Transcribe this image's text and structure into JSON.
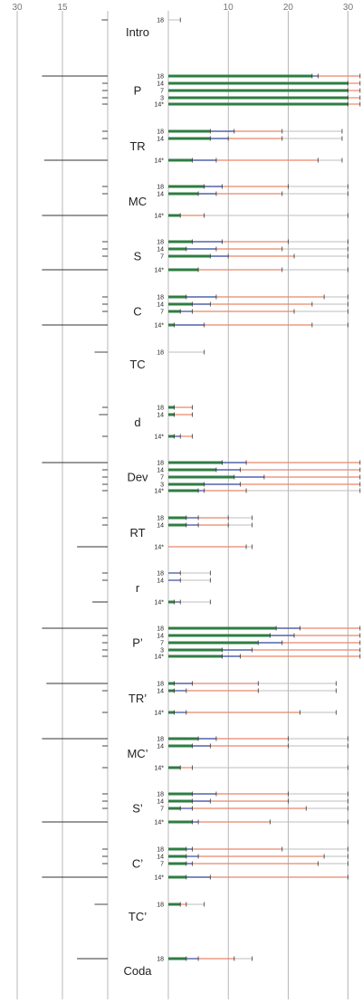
{
  "chart_data": {
    "type": "range-bar",
    "left_axis": {
      "ticks": [
        30,
        15
      ],
      "range": [
        30,
        0
      ]
    },
    "right_axis": {
      "ticks": [
        10,
        20,
        30
      ],
      "range": [
        0,
        32
      ]
    },
    "colors": {
      "green": "#2e7d42",
      "blue": "#5462a8",
      "orange": "#e8876a",
      "gray": "#bdbdbd",
      "grid": "#9a9a9a",
      "tick": "#333333"
    },
    "sections": [
      {
        "name": "Intro",
        "rows": [
          {
            "label": "18",
            "g": 0,
            "b": 0,
            "o": 0,
            "gr": 2,
            "ticks": [
              2
            ]
          }
        ]
      },
      {
        "name": "P",
        "rows": [
          {
            "label": "18",
            "g": 24,
            "b": 25,
            "o": 32,
            "gr": 32,
            "ticks": [
              24,
              25,
              32
            ]
          },
          {
            "label": "14",
            "g": 30,
            "b": 30,
            "o": 32,
            "gr": 32,
            "ticks": [
              30,
              32
            ]
          },
          {
            "label": "7",
            "g": 30,
            "b": 30,
            "o": 32,
            "gr": 32,
            "ticks": [
              30,
              32
            ]
          },
          {
            "label": "3",
            "g": 30,
            "b": 30,
            "o": 32,
            "gr": 32,
            "ticks": [
              30,
              32
            ]
          },
          {
            "label": "14*",
            "g": 30,
            "b": 30,
            "o": 32,
            "gr": 32,
            "ticks": [
              30,
              32
            ]
          }
        ]
      },
      {
        "name": "TR",
        "rows": [
          {
            "label": "18",
            "g": 7,
            "b": 11,
            "o": 19,
            "gr": 29,
            "ticks": [
              7,
              11,
              19,
              29
            ]
          },
          {
            "label": "14",
            "g": 7,
            "b": 10,
            "o": 19,
            "gr": 29,
            "ticks": [
              7,
              10,
              19,
              29
            ]
          },
          {
            "label": "14*",
            "g": 4,
            "b": 8,
            "o": 25,
            "gr": 29,
            "ticks": [
              4,
              8,
              25,
              29
            ]
          }
        ]
      },
      {
        "name": "MC",
        "rows": [
          {
            "label": "18",
            "g": 6,
            "b": 9,
            "o": 20,
            "gr": 30,
            "ticks": [
              6,
              9,
              20,
              30
            ]
          },
          {
            "label": "14",
            "g": 5,
            "b": 8,
            "o": 19,
            "gr": 30,
            "ticks": [
              5,
              8,
              19,
              30
            ]
          },
          {
            "label": "14*",
            "g": 2,
            "b": 2,
            "o": 6,
            "gr": 30,
            "ticks": [
              2,
              6,
              30
            ]
          }
        ]
      },
      {
        "name": "S",
        "rows": [
          {
            "label": "18",
            "g": 4,
            "b": 9,
            "o": 20,
            "gr": 30,
            "ticks": [
              4,
              9,
              20,
              30
            ]
          },
          {
            "label": "14",
            "g": 3,
            "b": 8,
            "o": 19,
            "gr": 30,
            "ticks": [
              3,
              8,
              19,
              30
            ]
          },
          {
            "label": "7",
            "g": 7,
            "b": 10,
            "o": 21,
            "gr": 30,
            "ticks": [
              7,
              10,
              21,
              30
            ]
          },
          {
            "label": "14*",
            "g": 5,
            "b": 5,
            "o": 19,
            "gr": 30,
            "ticks": [
              5,
              19,
              30
            ]
          }
        ]
      },
      {
        "name": "C",
        "rows": [
          {
            "label": "18",
            "g": 3,
            "b": 8,
            "o": 26,
            "gr": 30,
            "ticks": [
              3,
              8,
              26,
              30
            ]
          },
          {
            "label": "14",
            "g": 4,
            "b": 7,
            "o": 24,
            "gr": 30,
            "ticks": [
              4,
              7,
              24,
              30
            ]
          },
          {
            "label": "7",
            "g": 2,
            "b": 4,
            "o": 21,
            "gr": 30,
            "ticks": [
              2,
              4,
              21,
              30
            ]
          },
          {
            "label": "14*",
            "g": 1,
            "b": 6,
            "o": 24,
            "gr": 30,
            "ticks": [
              1,
              6,
              24,
              30
            ]
          }
        ]
      },
      {
        "name": "TC",
        "rows": [
          {
            "label": "18",
            "g": 0,
            "b": 0,
            "o": 0,
            "gr": 6,
            "ticks": [
              6
            ]
          }
        ]
      },
      {
        "name": "d",
        "rows": [
          {
            "label": "18",
            "g": 1,
            "b": 1,
            "o": 4,
            "gr": 4,
            "ticks": [
              1,
              4
            ]
          },
          {
            "label": "14",
            "g": 1,
            "b": 1,
            "o": 4,
            "gr": 4,
            "ticks": [
              1,
              4
            ]
          },
          {
            "label": "14*",
            "g": 1,
            "b": 2,
            "o": 4,
            "gr": 4,
            "ticks": [
              1,
              2,
              4
            ]
          }
        ]
      },
      {
        "name": "Dev",
        "rows": [
          {
            "label": "18",
            "g": 9,
            "b": 13,
            "o": 32,
            "gr": 32,
            "ticks": [
              9,
              13,
              32
            ]
          },
          {
            "label": "14",
            "g": 8,
            "b": 12,
            "o": 32,
            "gr": 32,
            "ticks": [
              8,
              12,
              32
            ]
          },
          {
            "label": "7",
            "g": 11,
            "b": 16,
            "o": 32,
            "gr": 32,
            "ticks": [
              11,
              16,
              32
            ]
          },
          {
            "label": "3",
            "g": 6,
            "b": 12,
            "o": 32,
            "gr": 32,
            "ticks": [
              6,
              12,
              32
            ]
          },
          {
            "label": "14*",
            "g": 5,
            "b": 6,
            "o": 13,
            "gr": 32,
            "ticks": [
              5,
              6,
              13,
              32
            ]
          }
        ]
      },
      {
        "name": "RT",
        "rows": [
          {
            "label": "18",
            "g": 3,
            "b": 5,
            "o": 10,
            "gr": 14,
            "ticks": [
              3,
              5,
              10,
              14
            ]
          },
          {
            "label": "14",
            "g": 3,
            "b": 5,
            "o": 10,
            "gr": 14,
            "ticks": [
              3,
              5,
              10,
              14
            ]
          },
          {
            "label": "14*",
            "g": 0,
            "b": 0,
            "o": 13,
            "gr": 14,
            "ticks": [
              13,
              14
            ]
          }
        ]
      },
      {
        "name": "r",
        "rows": [
          {
            "label": "18",
            "g": 0,
            "b": 2,
            "o": 2,
            "gr": 7,
            "ticks": [
              2,
              7
            ]
          },
          {
            "label": "14",
            "g": 0,
            "b": 2,
            "o": 2,
            "gr": 7,
            "ticks": [
              2,
              7
            ]
          },
          {
            "label": "14*",
            "g": 1,
            "b": 2,
            "o": 2,
            "gr": 7,
            "ticks": [
              1,
              2,
              7
            ]
          }
        ]
      },
      {
        "name": "P’",
        "rows": [
          {
            "label": "18",
            "g": 18,
            "b": 22,
            "o": 32,
            "gr": 32,
            "ticks": [
              18,
              22,
              32
            ]
          },
          {
            "label": "14",
            "g": 17,
            "b": 21,
            "o": 32,
            "gr": 32,
            "ticks": [
              17,
              21,
              32
            ]
          },
          {
            "label": "7",
            "g": 15,
            "b": 19,
            "o": 32,
            "gr": 32,
            "ticks": [
              15,
              19,
              32
            ]
          },
          {
            "label": "3",
            "g": 9,
            "b": 14,
            "o": 32,
            "gr": 32,
            "ticks": [
              9,
              14,
              32
            ]
          },
          {
            "label": "14*",
            "g": 9,
            "b": 12,
            "o": 32,
            "gr": 32,
            "ticks": [
              9,
              12,
              32
            ]
          }
        ]
      },
      {
        "name": "TR’",
        "rows": [
          {
            "label": "18",
            "g": 1,
            "b": 4,
            "o": 15,
            "gr": 28,
            "ticks": [
              1,
              4,
              15,
              28
            ]
          },
          {
            "label": "14",
            "g": 1,
            "b": 3,
            "o": 15,
            "gr": 28,
            "ticks": [
              1,
              3,
              15,
              28
            ]
          },
          {
            "label": "14*",
            "g": 1,
            "b": 3,
            "o": 22,
            "gr": 28,
            "ticks": [
              1,
              3,
              22,
              28
            ]
          }
        ]
      },
      {
        "name": "MC’",
        "rows": [
          {
            "label": "18",
            "g": 5,
            "b": 8,
            "o": 20,
            "gr": 30,
            "ticks": [
              5,
              8,
              20,
              30
            ]
          },
          {
            "label": "14",
            "g": 4,
            "b": 7,
            "o": 20,
            "gr": 30,
            "ticks": [
              4,
              7,
              20,
              30
            ]
          },
          {
            "label": "14*",
            "g": 2,
            "b": 2,
            "o": 4,
            "gr": 30,
            "ticks": [
              2,
              4,
              30
            ]
          }
        ]
      },
      {
        "name": "S’",
        "rows": [
          {
            "label": "18",
            "g": 4,
            "b": 8,
            "o": 20,
            "gr": 30,
            "ticks": [
              4,
              8,
              20,
              30
            ]
          },
          {
            "label": "14",
            "g": 4,
            "b": 7,
            "o": 20,
            "gr": 30,
            "ticks": [
              4,
              7,
              20,
              30
            ]
          },
          {
            "label": "7",
            "g": 2,
            "b": 4,
            "o": 23,
            "gr": 30,
            "ticks": [
              2,
              4,
              23,
              30
            ]
          },
          {
            "label": "14*",
            "g": 4,
            "b": 5,
            "o": 17,
            "gr": 30,
            "ticks": [
              4,
              5,
              17,
              30
            ]
          }
        ]
      },
      {
        "name": "C’",
        "rows": [
          {
            "label": "18",
            "g": 3,
            "b": 4,
            "o": 19,
            "gr": 30,
            "ticks": [
              3,
              4,
              19,
              30
            ]
          },
          {
            "label": "14",
            "g": 3,
            "b": 5,
            "o": 26,
            "gr": 30,
            "ticks": [
              3,
              5,
              26,
              30
            ]
          },
          {
            "label": "7",
            "g": 3,
            "b": 4,
            "o": 25,
            "gr": 30,
            "ticks": [
              3,
              4,
              25,
              30
            ]
          },
          {
            "label": "14*",
            "g": 3,
            "b": 7,
            "o": 30,
            "gr": 30,
            "ticks": [
              3,
              7,
              30
            ]
          }
        ]
      },
      {
        "name": "TC’",
        "rows": [
          {
            "label": "18",
            "g": 2,
            "b": 2,
            "o": 3,
            "gr": 6,
            "ticks": [
              2,
              3,
              6
            ]
          }
        ]
      },
      {
        "name": "Coda",
        "rows": [
          {
            "label": "18",
            "g": 3,
            "b": 5,
            "o": 11,
            "gr": 14,
            "ticks": [
              3,
              5,
              11,
              14
            ]
          }
        ]
      }
    ]
  }
}
